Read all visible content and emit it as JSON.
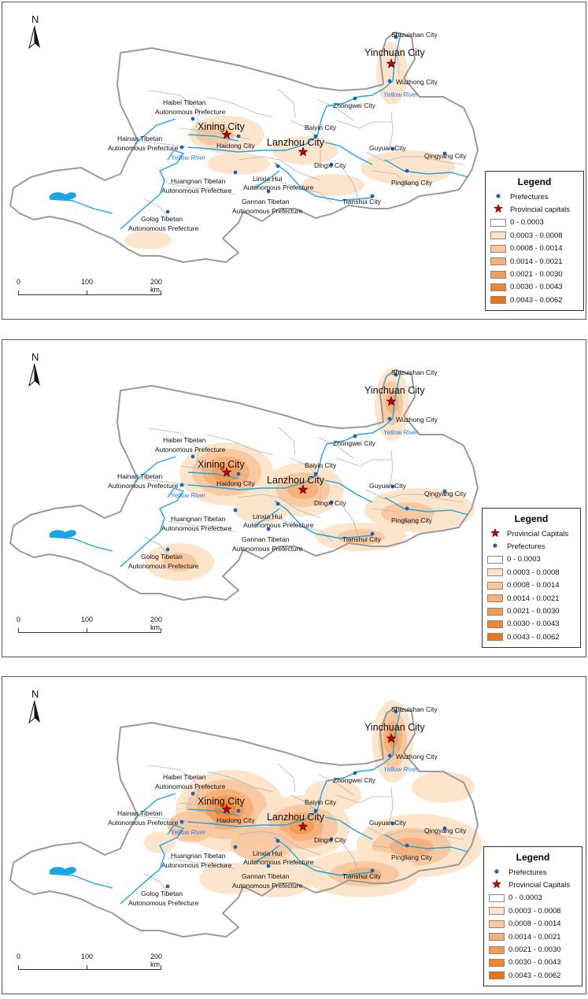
{
  "north_label": "N",
  "scale": {
    "t0": "0",
    "t1": "100",
    "t2": "200 km"
  },
  "colors": {
    "c0": "#ffffff",
    "c1": "#fde3c8",
    "c2": "#f9c89e",
    "c3": "#f6b078",
    "c4": "#f39b52",
    "c5": "#f0852e",
    "c6": "#ec7413",
    "river": "#1aa6e4",
    "boundary": "#9a9a9a",
    "point": "#1f5fbf",
    "star": "#c00000"
  },
  "places": {
    "shizuishan": "Shizuishan City",
    "yinchuan": "Yinchuan City",
    "wuzhong": "Wuzhong City",
    "zhongwei": "Zhongwei City",
    "haibei1": "Haibei Tibetan",
    "haibei2": "Autonomous Prefecture",
    "xining": "Xining City",
    "haidong": "Haidong City",
    "lanzhou": "Lanzhou City",
    "baiyin": "Baiyin City",
    "hainan1": "Hainan Tibetan",
    "hainan2": "Autonomous Prefecture",
    "guyuan": "Guyuan City",
    "qingyang": "Qingyang City",
    "dingxi": "Dingxi City",
    "pingliang": "Pingliang City",
    "linxia1": "Linxia Hui",
    "linxia2": "Autonomous Prefecture",
    "huangnan1": "Huangnan Tibetan",
    "huangnan2": "Autonomous Prefecture",
    "gannan1": "Gannan Tibetan",
    "gannan2": "Autonomous Prefecture",
    "tianshui": "Tianshui City",
    "golog1": "Golog Tibetan",
    "golog2": "Autonomous Prefecture",
    "yellow_river": "Yellow River"
  },
  "legends": [
    {
      "title": "Legend",
      "rows": [
        {
          "kind": "point",
          "label": "Prefectures"
        },
        {
          "kind": "star",
          "label": "Provincial capitals"
        },
        {
          "kind": "c0",
          "label": "0 - 0.0003"
        },
        {
          "kind": "c1",
          "label": "0.0003 - 0.0008"
        },
        {
          "kind": "c2",
          "label": "0.0008 - 0.0014"
        },
        {
          "kind": "c3",
          "label": "0.0014 - 0.0021"
        },
        {
          "kind": "c4",
          "label": "0.0021 - 0.0030"
        },
        {
          "kind": "c5",
          "label": "0.0030 - 0.0043"
        },
        {
          "kind": "c6",
          "label": "0.0043 - 0.0062"
        }
      ]
    },
    {
      "title": "Legend",
      "rows": [
        {
          "kind": "star",
          "label": "Provincial Capitals"
        },
        {
          "kind": "point",
          "label": "Prefectures"
        },
        {
          "kind": "c0",
          "label": "0 - 0.0003"
        },
        {
          "kind": "c1",
          "label": "0.0003 - 0.0008"
        },
        {
          "kind": "c2",
          "label": "0.0008 - 0.0014"
        },
        {
          "kind": "c3",
          "label": "0.0014 - 0.0021"
        },
        {
          "kind": "c4",
          "label": "0.0021 - 0.0030"
        },
        {
          "kind": "c5",
          "label": "0.0030 - 0.0043"
        },
        {
          "kind": "c6",
          "label": "0.0043 - 0.0062"
        }
      ]
    },
    {
      "title": "Legend",
      "rows": [
        {
          "kind": "point",
          "label": "Prefectures"
        },
        {
          "kind": "star",
          "label": "Provincial Capitals"
        },
        {
          "kind": "c0",
          "label": "0 - 0.0003"
        },
        {
          "kind": "c1",
          "label": "0.0003 - 0.0008"
        },
        {
          "kind": "c2",
          "label": "0.0008 - 0.0014"
        },
        {
          "kind": "c3",
          "label": "0.0014 - 0.0021"
        },
        {
          "kind": "c4",
          "label": "0.0021 - 0.0030"
        },
        {
          "kind": "c5",
          "label": "0.0030 - 0.0043"
        },
        {
          "kind": "c6",
          "label": "0.0043 - 0.0062"
        }
      ]
    }
  ]
}
